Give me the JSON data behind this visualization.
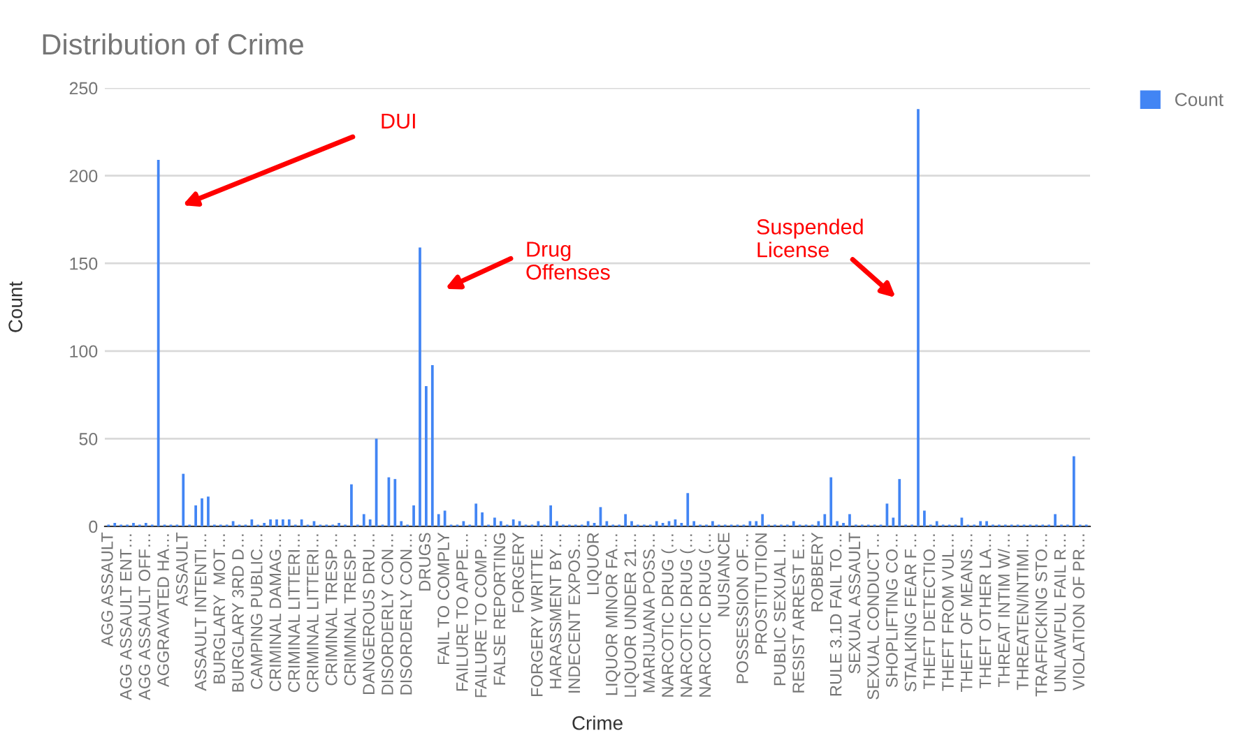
{
  "chart_data": {
    "type": "bar",
    "title": "Distribution of Crime",
    "xlabel": "Crime",
    "ylabel": "Count",
    "annotations": [
      "DUI",
      "Drug\nOffenses",
      "Suspended\nLicense"
    ],
    "categories": [
      "AGG ASSAULT",
      null,
      null,
      "AGG ASSAULT ENT…",
      null,
      null,
      "AGG ASSAULT OFF…",
      null,
      null,
      "AGGRAVATED HA…",
      null,
      null,
      "ASSAULT",
      null,
      null,
      "ASSAULT INTENTI…",
      null,
      null,
      "BURGLARY  MOT…",
      null,
      null,
      "BURGLARY 3RD D…",
      null,
      null,
      "CAMPING PUBLIC…",
      null,
      null,
      "CRIMINAL DAMAG…",
      null,
      null,
      "CRIMINAL LITTERI…",
      null,
      null,
      "CRIMINAL LITTERI…",
      null,
      null,
      "CRIMINAL TRESP…",
      null,
      null,
      "CRIMINAL TRESP…",
      null,
      null,
      "DANGEROUS DRU…",
      null,
      null,
      "DISORDERLY CON…",
      null,
      null,
      "DISORDERLY CON…",
      null,
      null,
      "DRUGS",
      null,
      null,
      "FAIL TO COMPLY",
      null,
      null,
      "FAILURE TO APPE…",
      null,
      null,
      "FAILURE TO COMP…",
      null,
      null,
      "FALSE REPORTING",
      null,
      null,
      "FORGERY",
      null,
      null,
      "FORGERY WRITTE…",
      null,
      null,
      "HARASSMENT BY…",
      null,
      null,
      "INDECENT EXPOS…",
      null,
      null,
      "LIQUOR",
      null,
      null,
      "LIQUOR MINOR FA…",
      null,
      null,
      "LIQUOR UNDER 21…",
      null,
      null,
      "MARIJUANA POSS…",
      null,
      null,
      "NARCOTIC DRUG (…",
      null,
      null,
      "NARCOTIC DRUG (…",
      null,
      null,
      "NARCOTIC DRUG (…",
      null,
      null,
      "NUSIANCE",
      null,
      null,
      "POSSESSION OF…",
      null,
      null,
      "PROSTITUTION",
      null,
      null,
      "PUBLIC SEXUAL I…",
      null,
      null,
      "RESIST ARREST E…",
      null,
      null,
      "ROBBERY",
      null,
      null,
      "RULE 3.1D FAIL TO…",
      null,
      null,
      "SEXUAL ASSAULT",
      null,
      null,
      "SEXUAL CONDUCT…",
      null,
      null,
      "SHOPLIFTING CO…",
      null,
      null,
      "STALKING FEAR F…",
      null,
      null,
      "THEFT DETECTIO…",
      null,
      null,
      "THEFT FROM VUL…",
      null,
      null,
      "THEFT OF MEANS…",
      null,
      null,
      "THEFT OTHER LA…",
      null,
      null,
      "THREAT INTIM W/…",
      null,
      null,
      "THREATEN/INTIMI…",
      null,
      null,
      "TRAFFICKING STO…",
      null,
      null,
      "UNLAWFUL FAIL R…",
      null,
      null,
      "VIOLATION OF PR…",
      null
    ],
    "series": [
      {
        "name": "Count",
        "color": "#4285f4",
        "values": [
          1,
          2,
          1,
          1,
          2,
          1,
          2,
          1,
          209,
          1,
          1,
          1,
          30,
          1,
          12,
          16,
          17,
          1,
          1,
          1,
          3,
          1,
          1,
          4,
          1,
          2,
          4,
          4,
          4,
          4,
          1,
          4,
          1,
          3,
          1,
          1,
          1,
          2,
          1,
          24,
          1,
          7,
          4,
          50,
          1,
          28,
          27,
          3,
          1,
          12,
          159,
          80,
          92,
          7,
          9,
          1,
          1,
          3,
          1,
          13,
          8,
          1,
          5,
          3,
          1,
          4,
          3,
          1,
          1,
          3,
          1,
          12,
          3,
          1,
          1,
          1,
          1,
          3,
          2,
          11,
          3,
          1,
          1,
          7,
          3,
          1,
          1,
          1,
          3,
          2,
          3,
          4,
          2,
          19,
          3,
          1,
          1,
          3,
          1,
          1,
          1,
          1,
          1,
          3,
          3,
          7,
          1,
          1,
          1,
          1,
          3,
          1,
          1,
          1,
          3,
          7,
          28,
          3,
          2,
          7,
          1,
          1,
          1,
          1,
          1,
          13,
          5,
          27,
          1,
          1,
          238,
          9,
          1,
          3,
          1,
          1,
          1,
          5,
          1,
          1,
          3,
          3,
          1,
          1,
          1,
          1,
          1,
          1,
          1,
          1,
          1,
          1,
          7,
          1,
          1,
          40,
          1,
          1
        ]
      }
    ],
    "ylim": [
      0,
      250
    ],
    "yticks": [
      0,
      50,
      100,
      150,
      200,
      250
    ],
    "grid": "y",
    "legend": "top right"
  }
}
